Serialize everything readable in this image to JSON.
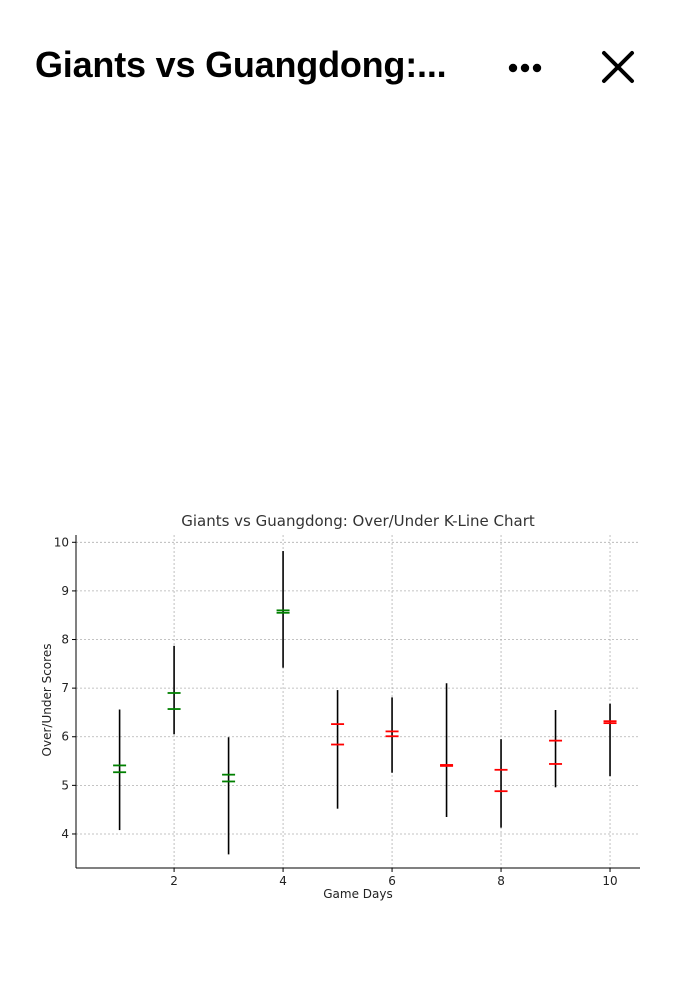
{
  "header": {
    "title": "Giants vs Guangdong:...",
    "more_icon": "more-horizontal-icon",
    "close_icon": "close-icon"
  },
  "chart_data": {
    "type": "candlestick",
    "title": "Giants vs Guangdong: Over/Under K-Line Chart",
    "xlabel": "Game Days",
    "ylabel": "Over/Under Scores",
    "xlim": [
      0.2,
      10.55
    ],
    "ylim": [
      3.3,
      10.15
    ],
    "xticks": [
      2,
      4,
      6,
      8,
      10
    ],
    "yticks": [
      4,
      5,
      6,
      7,
      8,
      9,
      10
    ],
    "grid": true,
    "colors": {
      "up": "#008000",
      "down": "#ff0000",
      "wick": "#000000",
      "grid": "#b0b0b0"
    },
    "candles": [
      {
        "day": 1,
        "open": 5.27,
        "close": 5.41,
        "high": 6.56,
        "low": 4.08
      },
      {
        "day": 2,
        "open": 6.57,
        "close": 6.9,
        "high": 7.87,
        "low": 6.05
      },
      {
        "day": 3,
        "open": 5.08,
        "close": 5.22,
        "high": 5.99,
        "low": 3.58
      },
      {
        "day": 4,
        "open": 8.55,
        "close": 8.6,
        "high": 9.82,
        "low": 7.42
      },
      {
        "day": 5,
        "open": 6.26,
        "close": 5.84,
        "high": 6.96,
        "low": 4.52
      },
      {
        "day": 6,
        "open": 6.11,
        "close": 6.01,
        "high": 6.81,
        "low": 5.26
      },
      {
        "day": 7,
        "open": 5.42,
        "close": 5.4,
        "high": 7.1,
        "low": 4.35
      },
      {
        "day": 8,
        "open": 5.32,
        "close": 4.88,
        "high": 5.95,
        "low": 4.13
      },
      {
        "day": 9,
        "open": 5.92,
        "close": 5.44,
        "high": 6.55,
        "low": 4.96
      },
      {
        "day": 10,
        "open": 6.32,
        "close": 6.28,
        "high": 6.68,
        "low": 5.19
      }
    ]
  }
}
